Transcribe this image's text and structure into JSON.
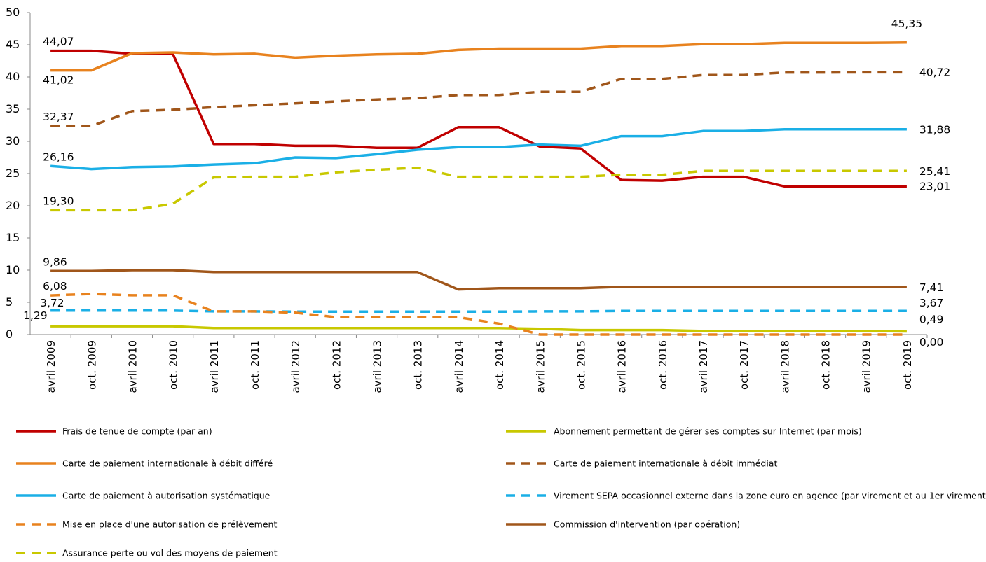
{
  "chart_data": {
    "type": "line",
    "title": "",
    "xlabel": "",
    "ylabel": "",
    "ylim": [
      0,
      50
    ],
    "yticks": [
      "0",
      "5",
      "10",
      "15",
      "20",
      "25",
      "30",
      "35",
      "40",
      "45",
      "50"
    ],
    "grid": false,
    "legend_position": "bottom",
    "categories": [
      "avril 2009",
      "oct. 2009",
      "avril 2010",
      "oct. 2010",
      "avril 2011",
      "oct. 2011",
      "avril 2012",
      "oct. 2012",
      "avril 2013",
      "oct. 2013",
      "avril 2014",
      "oct. 2014",
      "avril 2015",
      "oct. 2015",
      "avril 2016",
      "oct. 2016",
      "avril 2017",
      "oct. 2017",
      "avril 2018",
      "oct. 2018",
      "avril 2019",
      "oct. 2019"
    ],
    "series": [
      {
        "name": "Frais de tenue de compte (par an)",
        "color": "#c00000",
        "dashed": false,
        "values": [
          44.07,
          44.07,
          43.6,
          43.6,
          29.6,
          29.6,
          29.3,
          29.3,
          29.0,
          29.0,
          32.2,
          32.2,
          29.2,
          28.9,
          24.0,
          23.9,
          24.5,
          24.5,
          23.01,
          23.01,
          23.01,
          23.01
        ],
        "first_label": "44,07",
        "last_label": "23,01"
      },
      {
        "name": "Abonnement permettant de gérer ses comptes sur Internet (par mois)",
        "color": "#c8c800",
        "dashed": false,
        "values": [
          1.29,
          1.29,
          1.29,
          1.29,
          1.0,
          1.0,
          1.0,
          1.0,
          1.0,
          1.0,
          1.0,
          1.0,
          0.9,
          0.7,
          0.7,
          0.7,
          0.55,
          0.55,
          0.55,
          0.55,
          0.55,
          0.49
        ],
        "first_label": "1,29",
        "last_label": "0,49"
      },
      {
        "name": "Carte de paiement internationale à débit différé",
        "color": "#e8821e",
        "dashed": false,
        "values": [
          41.02,
          41.02,
          43.7,
          43.8,
          43.5,
          43.6,
          43.0,
          43.3,
          43.5,
          43.6,
          44.2,
          44.4,
          44.4,
          44.4,
          44.8,
          44.8,
          45.1,
          45.1,
          45.3,
          45.3,
          45.3,
          45.35
        ],
        "first_label": "41,02",
        "last_label": "45,35"
      },
      {
        "name": "Carte de paiement internationale à débit immédiat",
        "color": "#a0561a",
        "dashed": true,
        "values": [
          32.37,
          32.37,
          34.7,
          34.9,
          35.3,
          35.6,
          35.9,
          36.2,
          36.5,
          36.7,
          37.2,
          37.2,
          37.7,
          37.7,
          39.7,
          39.7,
          40.3,
          40.3,
          40.7,
          40.7,
          40.72,
          40.72
        ],
        "first_label": "32,37",
        "last_label": "40,72"
      },
      {
        "name": "Carte de paiement à autorisation systématique",
        "color": "#1aafe6",
        "dashed": false,
        "values": [
          26.16,
          25.7,
          26.0,
          26.1,
          26.4,
          26.6,
          27.5,
          27.4,
          28.0,
          28.7,
          29.1,
          29.1,
          29.5,
          29.3,
          30.8,
          30.8,
          31.6,
          31.6,
          31.88,
          31.88,
          31.88,
          31.88
        ],
        "first_label": "26,16",
        "last_label": "31,88"
      },
      {
        "name": "Virement SEPA occasionnel externe dans la zone euro en agence (par virement et au 1er virement)",
        "color": "#1aafe6",
        "dashed": true,
        "values": [
          3.72,
          3.72,
          3.72,
          3.72,
          3.6,
          3.6,
          3.55,
          3.55,
          3.55,
          3.55,
          3.55,
          3.55,
          3.6,
          3.6,
          3.67,
          3.67,
          3.67,
          3.67,
          3.67,
          3.67,
          3.67,
          3.67
        ],
        "first_label": "3,72",
        "last_label": "3,67"
      },
      {
        "name": "Mise en place d'une autorisation de prélèvement",
        "color": "#e8821e",
        "dashed": true,
        "values": [
          6.08,
          6.3,
          6.1,
          6.1,
          3.6,
          3.6,
          3.4,
          2.7,
          2.7,
          2.7,
          2.7,
          1.7,
          0.0,
          0.0,
          0.0,
          0.0,
          0.0,
          0.0,
          0.0,
          0.0,
          0.0,
          0.0
        ],
        "first_label": "6,08",
        "last_label": "0,00"
      },
      {
        "name": "Commission d'intervention (par opération)",
        "color": "#a0561a",
        "dashed": false,
        "values": [
          9.86,
          9.86,
          10.0,
          10.0,
          9.7,
          9.7,
          9.7,
          9.7,
          9.7,
          9.7,
          7.0,
          7.2,
          7.2,
          7.2,
          7.41,
          7.41,
          7.41,
          7.41,
          7.41,
          7.41,
          7.41,
          7.41
        ],
        "first_label": "9,86",
        "last_label": "7,41"
      },
      {
        "name": "Assurance perte ou vol des moyens de paiement",
        "color": "#c8c800",
        "dashed": true,
        "values": [
          19.3,
          19.3,
          19.3,
          20.3,
          24.4,
          24.5,
          24.5,
          25.2,
          25.6,
          25.9,
          24.5,
          24.5,
          24.5,
          24.5,
          24.8,
          24.8,
          25.41,
          25.41,
          25.41,
          25.41,
          25.41,
          25.41
        ],
        "first_label": "19,30",
        "last_label": "25,41"
      }
    ]
  }
}
